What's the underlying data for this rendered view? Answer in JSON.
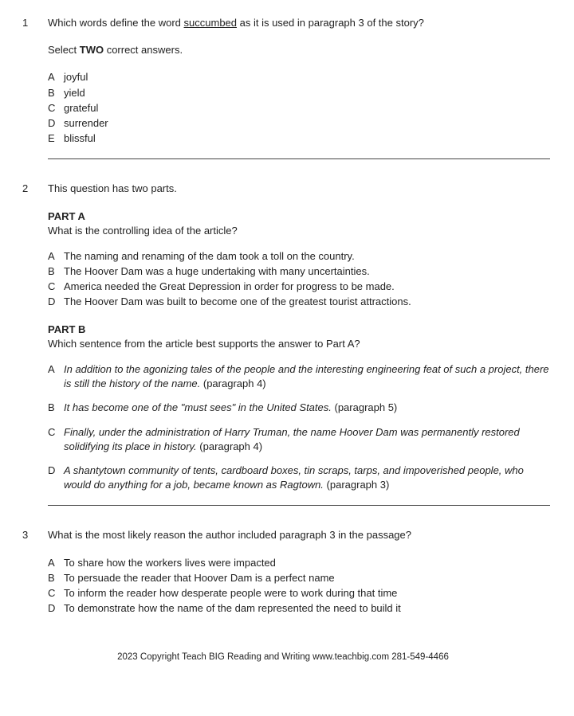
{
  "q1": {
    "num": "1",
    "stem_pre": "Which words define the word ",
    "stem_word": "succumbed",
    "stem_post": " as it is used in paragraph 3 of the story?",
    "instruct_pre": "Select ",
    "instruct_bold": "TWO",
    "instruct_post": " correct answers.",
    "opts": [
      {
        "l": "A",
        "t": "joyful"
      },
      {
        "l": "B",
        "t": "yield"
      },
      {
        "l": "C",
        "t": "grateful"
      },
      {
        "l": "D",
        "t": "surrender"
      },
      {
        "l": "E",
        "t": "blissful"
      }
    ]
  },
  "q2": {
    "num": "2",
    "intro": "This question has two parts.",
    "partA": {
      "label": "PART A",
      "prompt": "What is the controlling idea of the article?",
      "opts": [
        {
          "l": "A",
          "t": "The naming and renaming of the dam took a toll on the country."
        },
        {
          "l": "B",
          "t": "The Hoover Dam was a huge undertaking with many uncertainties."
        },
        {
          "l": "C",
          "t": "America needed the Great Depression in order for progress to be made."
        },
        {
          "l": "D",
          "t": "The Hoover Dam was built to become one of the greatest tourist attractions."
        }
      ]
    },
    "partB": {
      "label": "PART B",
      "prompt": "Which sentence from the article best supports the answer to Part A?",
      "opts": [
        {
          "l": "A",
          "it": "In addition to the agonizing tales of the people and the interesting engineering feat of such a project, there is still the history of the name.",
          "cite": " (paragraph 4)"
        },
        {
          "l": "B",
          "it": "It has become one of the \"must sees\" in the United States.",
          "cite": " (paragraph 5)"
        },
        {
          "l": "C",
          "it": "Finally, under the administration of Harry Truman, the name Hoover Dam was permanently restored solidifying its place in history.",
          "cite": " (paragraph 4)"
        },
        {
          "l": "D",
          "it": "A shantytown community of tents, cardboard boxes, tin scraps, tarps, and impoverished people, who would do anything for a job, became known as Ragtown.",
          "cite": " (paragraph 3)"
        }
      ]
    }
  },
  "q3": {
    "num": "3",
    "stem": "What is the most likely reason the author included paragraph 3 in the passage?",
    "opts": [
      {
        "l": "A",
        "t": "To share how the workers lives were impacted"
      },
      {
        "l": "B",
        "t": "To persuade the reader that Hoover Dam is a perfect name"
      },
      {
        "l": "C",
        "t": "To inform the reader how desperate people were to work during that time"
      },
      {
        "l": "D",
        "t": "To demonstrate how the name of the dam represented the need to build it"
      }
    ]
  },
  "footer": "2023 Copyright Teach BIG Reading and Writing www.teachbig.com 281-549-4466"
}
